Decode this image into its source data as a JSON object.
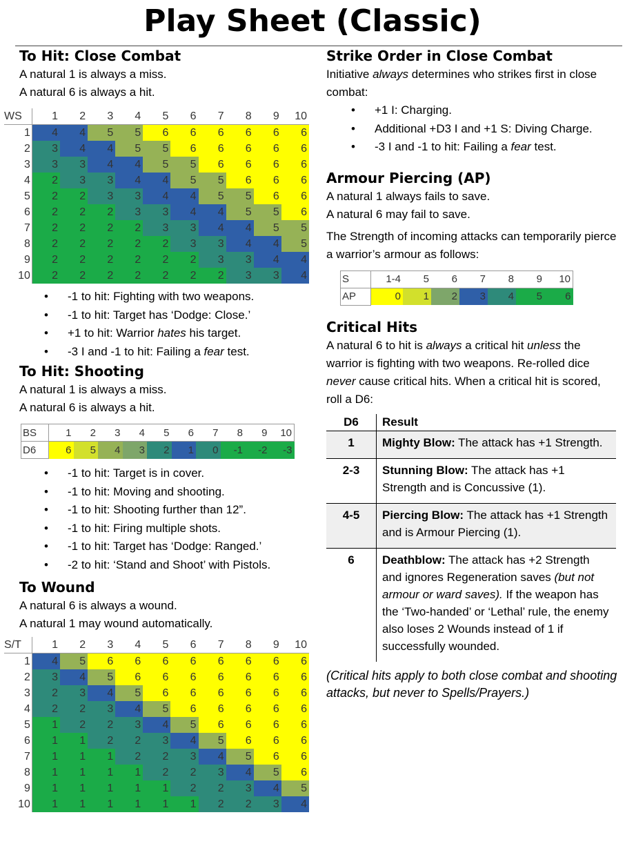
{
  "title": "Play Sheet (Classic)",
  "colors": {
    "blue": "#2f5fa8",
    "teal": "#2e8a7a",
    "green": "#1bab48",
    "olive": "#96b256",
    "yellow": "#ffff00",
    "lime": "#d2e02c",
    "sage": "#7ea66a"
  },
  "close_combat": {
    "heading": "To Hit: Close Combat",
    "notes": [
      "A natural 1 is always a miss.",
      "A natural 6 is always a hit."
    ],
    "corner": "WS",
    "columns": [
      "1",
      "2",
      "3",
      "4",
      "5",
      "6",
      "7",
      "8",
      "9",
      "10"
    ],
    "rows": [
      {
        "label": "1",
        "values": [
          4,
          4,
          5,
          5,
          6,
          6,
          6,
          6,
          6,
          6
        ]
      },
      {
        "label": "2",
        "values": [
          3,
          4,
          4,
          5,
          5,
          6,
          6,
          6,
          6,
          6
        ]
      },
      {
        "label": "3",
        "values": [
          3,
          3,
          4,
          4,
          5,
          5,
          6,
          6,
          6,
          6
        ]
      },
      {
        "label": "4",
        "values": [
          2,
          3,
          3,
          4,
          4,
          5,
          5,
          6,
          6,
          6
        ]
      },
      {
        "label": "5",
        "values": [
          2,
          2,
          3,
          3,
          4,
          4,
          5,
          5,
          6,
          6
        ]
      },
      {
        "label": "6",
        "values": [
          2,
          2,
          2,
          3,
          3,
          4,
          4,
          5,
          5,
          6
        ]
      },
      {
        "label": "7",
        "values": [
          2,
          2,
          2,
          2,
          3,
          3,
          4,
          4,
          5,
          5
        ]
      },
      {
        "label": "8",
        "values": [
          2,
          2,
          2,
          2,
          2,
          3,
          3,
          4,
          4,
          5
        ]
      },
      {
        "label": "9",
        "values": [
          2,
          2,
          2,
          2,
          2,
          2,
          3,
          3,
          4,
          4
        ]
      },
      {
        "label": "10",
        "values": [
          2,
          2,
          2,
          2,
          2,
          2,
          2,
          3,
          3,
          4
        ]
      }
    ],
    "modifiers": [
      [
        "-1 to hit: Fighting with two weapons."
      ],
      [
        "-1 to hit: Target has ‘Dodge: Close.’"
      ],
      [
        "+1 to hit: Warrior ",
        "hates",
        " his target."
      ],
      [
        "-3 I and -1 to hit: Failing a ",
        "fear",
        " test."
      ]
    ]
  },
  "shooting": {
    "heading": "To Hit: Shooting",
    "notes": [
      "A natural 1 is always a miss.",
      "A natural 6 is always a hit."
    ],
    "row_labels": [
      "BS",
      "D6"
    ],
    "columns": [
      "1",
      "2",
      "3",
      "4",
      "5",
      "6",
      "7",
      "8",
      "9",
      "10"
    ],
    "values": [
      "6",
      "5",
      "4",
      "3",
      "2",
      "1",
      "0",
      "-1",
      "-2",
      "-3"
    ],
    "modifiers": [
      "-1 to hit: Target is in cover.",
      "-1 to hit: Moving and shooting.",
      "-1 to hit: Shooting further than 12”.",
      "-1 to hit: Firing multiple shots.",
      "-1 to hit: Target has ‘Dodge: Ranged.’",
      "-2 to hit: ‘Stand and Shoot’ with Pistols."
    ]
  },
  "to_wound": {
    "heading": "To Wound",
    "notes": [
      "A natural 6 is always a wound.",
      "A natural 1 may wound automatically."
    ],
    "corner": "S/T",
    "columns": [
      "1",
      "2",
      "3",
      "4",
      "5",
      "6",
      "7",
      "8",
      "9",
      "10"
    ],
    "rows": [
      {
        "label": "1",
        "values": [
          4,
          5,
          6,
          6,
          6,
          6,
          6,
          6,
          6,
          6
        ]
      },
      {
        "label": "2",
        "values": [
          3,
          4,
          5,
          6,
          6,
          6,
          6,
          6,
          6,
          6
        ]
      },
      {
        "label": "3",
        "values": [
          2,
          3,
          4,
          5,
          6,
          6,
          6,
          6,
          6,
          6
        ]
      },
      {
        "label": "4",
        "values": [
          2,
          2,
          3,
          4,
          5,
          6,
          6,
          6,
          6,
          6
        ]
      },
      {
        "label": "5",
        "values": [
          1,
          2,
          2,
          3,
          4,
          5,
          6,
          6,
          6,
          6
        ]
      },
      {
        "label": "6",
        "values": [
          1,
          1,
          2,
          2,
          3,
          4,
          5,
          6,
          6,
          6
        ]
      },
      {
        "label": "7",
        "values": [
          1,
          1,
          1,
          2,
          2,
          3,
          4,
          5,
          6,
          6
        ]
      },
      {
        "label": "8",
        "values": [
          1,
          1,
          1,
          1,
          2,
          2,
          3,
          4,
          5,
          6
        ]
      },
      {
        "label": "9",
        "values": [
          1,
          1,
          1,
          1,
          1,
          2,
          2,
          3,
          4,
          5
        ]
      },
      {
        "label": "10",
        "values": [
          1,
          1,
          1,
          1,
          1,
          1,
          2,
          2,
          3,
          4
        ]
      }
    ]
  },
  "strike_order": {
    "heading": "Strike Order in Close Combat",
    "intro": [
      "Initiative ",
      "always",
      " determines who strikes first in close combat:"
    ],
    "items": [
      [
        "+1 I: Charging."
      ],
      [
        "Additional +D3 I and +1 S: Diving Charge."
      ],
      [
        "-3 I and -1 to hit: Failing a ",
        "fear",
        " test."
      ]
    ]
  },
  "armour_piercing": {
    "heading": "Armour Piercing (AP)",
    "notes": [
      "A natural 1 always fails to save.",
      "A natural 6 may fail to save."
    ],
    "description": "The Strength of incoming attacks can temporarily pierce a warrior’s armour as follows:",
    "row_labels": [
      "S",
      "AP"
    ],
    "columns": [
      "1-4",
      "5",
      "6",
      "7",
      "8",
      "9",
      "10"
    ],
    "values": [
      "0",
      "1",
      "2",
      "3",
      "4",
      "5",
      "6"
    ]
  },
  "critical_hits": {
    "heading": "Critical Hits",
    "intro": [
      "A natural 6 to hit is ",
      "always",
      " a critical hit ",
      "unless",
      " the warrior is fighting with two weapons. Re-rolled dice ",
      "never",
      " cause critical hits. When a critical hit is scored, roll a D6:"
    ],
    "col_d6": "D6",
    "col_result": "Result",
    "rows": [
      {
        "roll": "1",
        "name": "Mighty Blow:",
        "text": " The attack has +1 Strength."
      },
      {
        "roll": "2-3",
        "name": "Stunning Blow:",
        "text": " The attack has +1 Strength and is Concussive (1)."
      },
      {
        "roll": "4-5",
        "name": "Piercing Blow:",
        "text": " The attack has +1 Strength and is Armour Piercing (1)."
      },
      {
        "roll": "6",
        "name": "Deathblow:",
        "text": " The attack has +2 Strength and ignores Regeneration saves ",
        "italic": "(but not armour or ward saves).",
        "text2": " If the weapon has the ‘Two-handed’ or ‘Lethal’ rule, the enemy also loses 2 Wounds instead of 1 if successfully wounded."
      }
    ],
    "footnote": "(Critical hits apply to both close combat and shooting attacks, but never to Spells/Prayers.)"
  }
}
